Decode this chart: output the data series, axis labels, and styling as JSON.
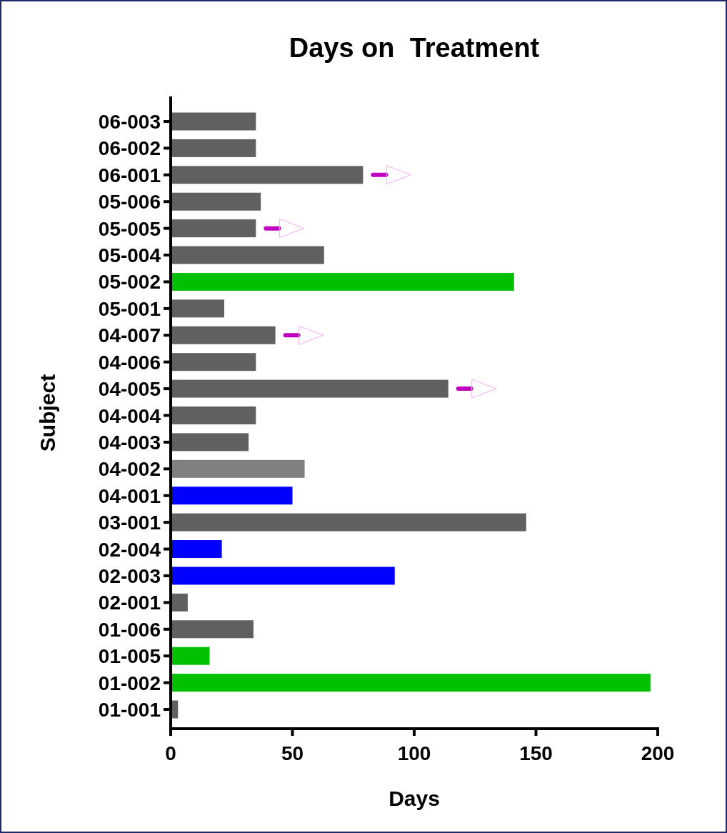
{
  "chart_data": {
    "type": "bar",
    "orientation": "horizontal",
    "title": "Days on  Treatment",
    "xlabel": "Days",
    "ylabel": "Subject",
    "categories": [
      "06-003",
      "06-002",
      "06-001",
      "05-006",
      "05-005",
      "05-004",
      "05-002",
      "05-001",
      "04-007",
      "04-006",
      "04-005",
      "04-004",
      "04-003",
      "04-002",
      "04-001",
      "03-001",
      "02-004",
      "02-003",
      "02-001",
      "01-006",
      "01-005",
      "01-002",
      "01-001"
    ],
    "values": [
      35,
      35,
      79,
      37,
      35,
      63,
      141,
      22,
      43,
      35,
      114,
      35,
      32,
      55,
      50,
      146,
      21,
      92,
      7,
      34,
      16,
      197,
      3
    ],
    "colors": [
      "#606060",
      "#606060",
      "#606060",
      "#606060",
      "#606060",
      "#606060",
      "#00c000",
      "#606060",
      "#606060",
      "#606060",
      "#606060",
      "#606060",
      "#606060",
      "#808080",
      "#0000ff",
      "#606060",
      "#0000ff",
      "#0000ff",
      "#606060",
      "#606060",
      "#00c000",
      "#00c000",
      "#606060"
    ],
    "xlim": [
      0,
      200
    ],
    "xticks": [
      0,
      50,
      100,
      150,
      200
    ],
    "grid": false
  }
}
